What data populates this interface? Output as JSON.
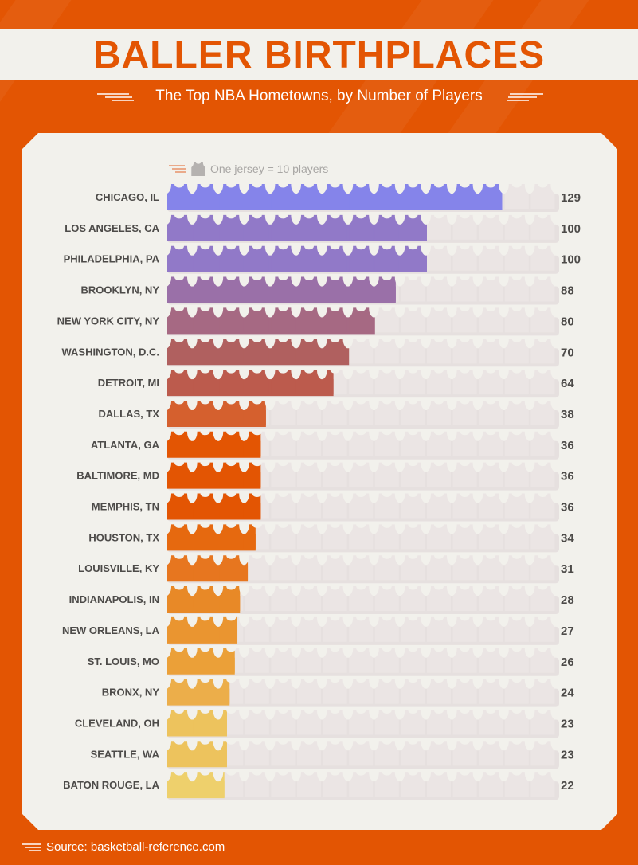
{
  "title": "BALLER BIRTHPLACES",
  "subtitle": "The Top NBA Hometowns, by Number of Players",
  "legend": {
    "text": "One jersey = 10 players",
    "icon": "jersey-icon"
  },
  "source": "Source: basketball-reference.com",
  "colors": {
    "background": "#e35503",
    "panel": "#f2f1ec",
    "track": "#e6e0df",
    "empty_jersey": "#ebe5e4",
    "label": "#4d4b49"
  },
  "chart_data": {
    "type": "bar",
    "title": "BALLER BIRTHPLACES",
    "subtitle": "The Top NBA Hometowns, by Number of Players",
    "unit": "One jersey = 10 players",
    "categories": [
      "CHICAGO, IL",
      "LOS ANGELES, CA",
      "PHILADELPHIA, PA",
      "BROOKLYN, NY",
      "NEW YORK CITY, NY",
      "WASHINGTON, D.C.",
      "DETROIT, MI",
      "DALLAS, TX",
      "ATLANTA, GA",
      "BALTIMORE, MD",
      "MEMPHIS, TN",
      "HOUSTON, TX",
      "LOUISVILLE, KY",
      "INDIANAPOLIS, IN",
      "NEW ORLEANS, LA",
      "ST. LOUIS, MO",
      "BRONX, NY",
      "CLEVELAND, OH",
      "SEATTLE, WA",
      "BATON ROUGE, LA"
    ],
    "values": [
      129,
      100,
      100,
      88,
      80,
      70,
      64,
      38,
      36,
      36,
      36,
      34,
      31,
      28,
      27,
      26,
      24,
      23,
      23,
      22
    ],
    "bar_colors": [
      "#8584ea",
      "#9179c8",
      "#9179c8",
      "#9a70a8",
      "#a66983",
      "#b0605f",
      "#bc5b4d",
      "#d5602e",
      "#e35503",
      "#e35503",
      "#e35503",
      "#e6690f",
      "#e7761f",
      "#e88927",
      "#ea9530",
      "#eba038",
      "#ecae4a",
      "#edc35d",
      "#edc35d",
      "#eed06c"
    ],
    "xlim": [
      0,
      150
    ],
    "jersey_scale": 10
  }
}
